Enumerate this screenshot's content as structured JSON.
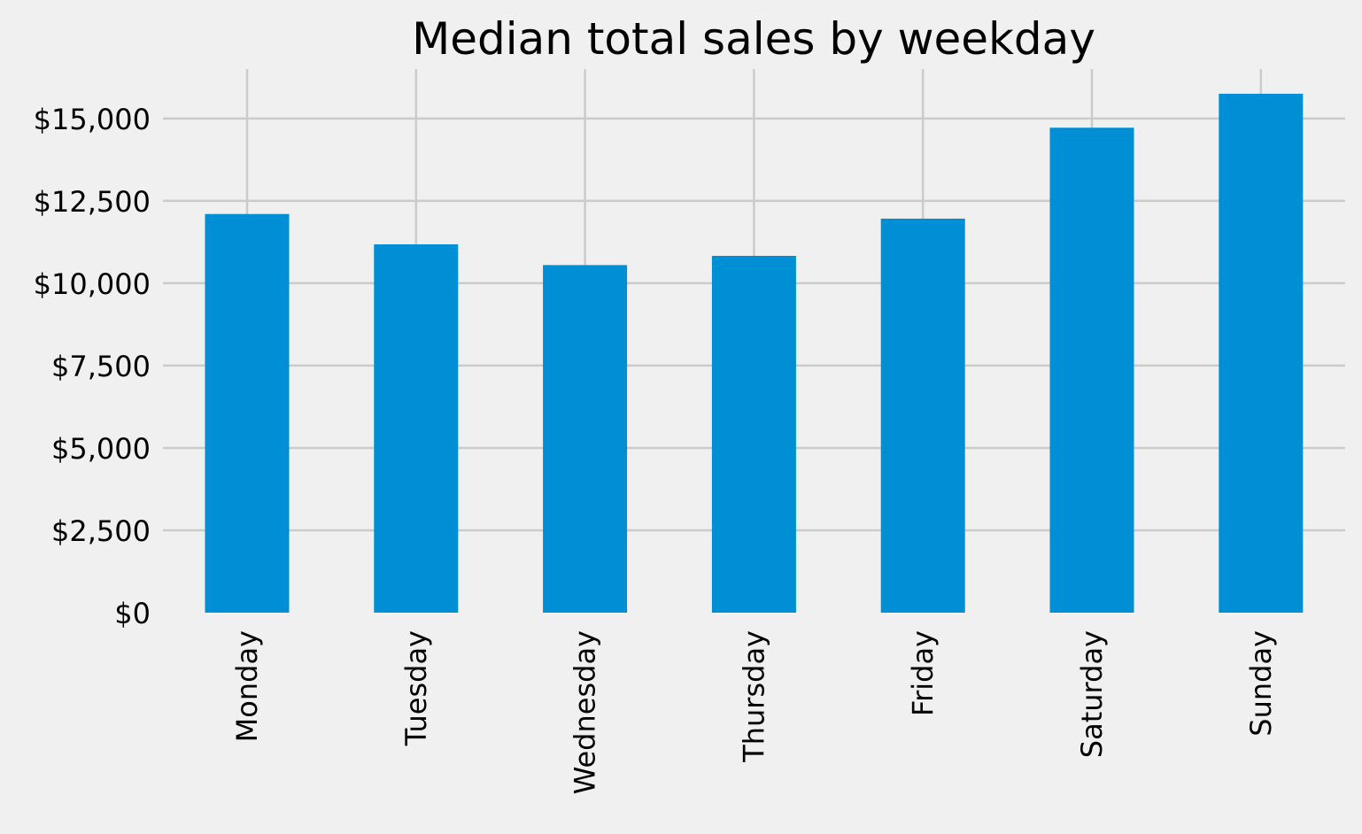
{
  "chart_data": {
    "type": "bar",
    "title": "Median total sales by weekday",
    "xlabel": "",
    "ylabel": "",
    "categories": [
      "Monday",
      "Tuesday",
      "Wednesday",
      "Thursday",
      "Friday",
      "Saturday",
      "Sunday"
    ],
    "values": [
      12100,
      11180,
      10550,
      10830,
      11960,
      14720,
      15750
    ],
    "ylim": [
      0,
      16500
    ],
    "yticks": [
      0,
      2500,
      5000,
      7500,
      10000,
      12500,
      15000
    ],
    "ytick_labels": [
      "$0",
      "$2,500",
      "$5,000",
      "$7,500",
      "$10,000",
      "$12,500",
      "$15,000"
    ],
    "grid": true,
    "legend": "none",
    "bar_color": "#008fd5",
    "background_color": "#f0f0f0",
    "grid_color": "#cbcbcb"
  }
}
